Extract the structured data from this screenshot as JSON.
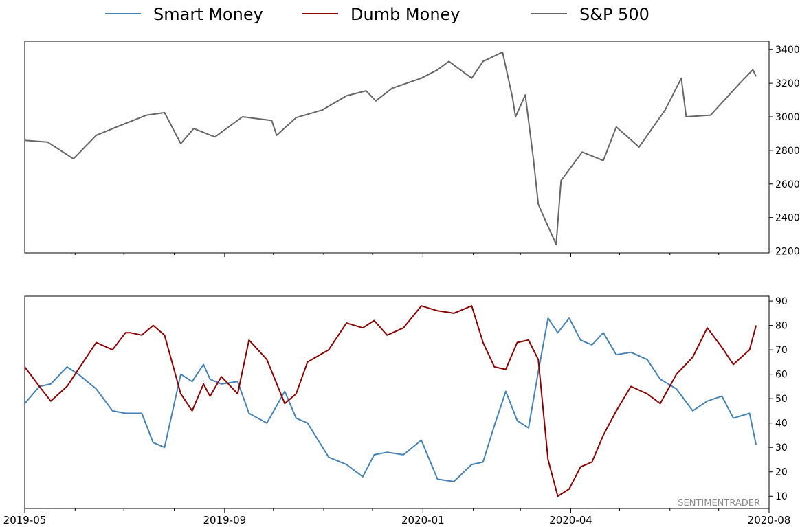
{
  "chart_data": [
    {
      "type": "line",
      "panel": "price",
      "series": [
        {
          "name": "S&P 500",
          "color": "#666666",
          "x": [
            "2019-05-01",
            "2019-05-15",
            "2019-05-31",
            "2019-06-14",
            "2019-06-28",
            "2019-07-15",
            "2019-07-26",
            "2019-08-05",
            "2019-08-13",
            "2019-08-26",
            "2019-09-12",
            "2019-09-30",
            "2019-10-03",
            "2019-10-15",
            "2019-10-31",
            "2019-11-15",
            "2019-11-27",
            "2019-12-03",
            "2019-12-13",
            "2019-12-31",
            "2020-01-10",
            "2020-01-17",
            "2020-01-31",
            "2020-02-07",
            "2020-02-19",
            "2020-02-25",
            "2020-02-27",
            "2020-03-04",
            "2020-03-09",
            "2020-03-12",
            "2020-03-16",
            "2020-03-20",
            "2020-03-23",
            "2020-03-26",
            "2020-04-08",
            "2020-04-21",
            "2020-04-29",
            "2020-05-13",
            "2020-05-29",
            "2020-06-08",
            "2020-06-11",
            "2020-06-26",
            "2020-07-14",
            "2020-07-22",
            "2020-07-24"
          ],
          "values": [
            2860,
            2850,
            2750,
            2890,
            2945,
            3010,
            3025,
            2840,
            2930,
            2880,
            3000,
            2978,
            2890,
            2995,
            3040,
            3125,
            3155,
            3095,
            3170,
            3230,
            3280,
            3330,
            3230,
            3330,
            3385,
            3120,
            3000,
            3130,
            2750,
            2480,
            2390,
            2305,
            2240,
            2620,
            2790,
            2740,
            2940,
            2820,
            3040,
            3230,
            3000,
            3010,
            3200,
            3280,
            3240
          ]
        }
      ],
      "yticks": [
        2200,
        2400,
        2600,
        2800,
        3000,
        3200,
        3400
      ],
      "ylim": [
        2190,
        3450
      ],
      "xlim": [
        "2019-05-01",
        "2020-08-01"
      ],
      "grid": false
    },
    {
      "type": "line",
      "panel": "confidence",
      "series": [
        {
          "name": "Smart Money",
          "color": "#4682b4",
          "x": [
            "2019-05-01",
            "2019-05-10",
            "2019-05-17",
            "2019-05-27",
            "2019-06-03",
            "2019-06-14",
            "2019-06-24",
            "2019-07-02",
            "2019-07-05",
            "2019-07-12",
            "2019-07-19",
            "2019-07-26",
            "2019-08-05",
            "2019-08-12",
            "2019-08-19",
            "2019-08-23",
            "2019-08-30",
            "2019-09-09",
            "2019-09-16",
            "2019-09-27",
            "2019-10-08",
            "2019-10-15",
            "2019-10-22",
            "2019-11-04",
            "2019-11-15",
            "2019-11-25",
            "2019-12-02",
            "2019-12-10",
            "2019-12-20",
            "2019-12-31",
            "2020-01-10",
            "2020-01-20",
            "2020-01-31",
            "2020-02-07",
            "2020-02-14",
            "2020-02-21",
            "2020-02-28",
            "2020-03-06",
            "2020-03-12",
            "2020-03-18",
            "2020-03-24",
            "2020-03-31",
            "2020-04-07",
            "2020-04-14",
            "2020-04-21",
            "2020-04-29",
            "2020-05-08",
            "2020-05-18",
            "2020-05-26",
            "2020-06-05",
            "2020-06-15",
            "2020-06-24",
            "2020-07-03",
            "2020-07-10",
            "2020-07-20",
            "2020-07-24"
          ],
          "values": [
            48,
            55,
            56,
            63,
            60,
            54,
            45,
            44,
            44,
            44,
            32,
            30,
            60,
            57,
            64,
            58,
            56,
            57,
            44,
            40,
            53,
            42,
            40,
            26,
            23,
            18,
            27,
            28,
            27,
            33,
            17,
            16,
            23,
            24,
            39,
            53,
            41,
            38,
            61,
            83,
            77,
            83,
            74,
            72,
            77,
            68,
            69,
            66,
            58,
            54,
            45,
            49,
            51,
            42,
            44,
            31
          ]
        },
        {
          "name": "Dumb Money",
          "color": "#8b0000",
          "x": [
            "2019-05-01",
            "2019-05-10",
            "2019-05-17",
            "2019-05-27",
            "2019-06-03",
            "2019-06-14",
            "2019-06-24",
            "2019-07-02",
            "2019-07-05",
            "2019-07-12",
            "2019-07-19",
            "2019-07-26",
            "2019-08-05",
            "2019-08-12",
            "2019-08-19",
            "2019-08-23",
            "2019-08-30",
            "2019-09-09",
            "2019-09-16",
            "2019-09-27",
            "2019-10-08",
            "2019-10-15",
            "2019-10-22",
            "2019-11-04",
            "2019-11-15",
            "2019-11-25",
            "2019-12-02",
            "2019-12-10",
            "2019-12-20",
            "2019-12-31",
            "2020-01-10",
            "2020-01-20",
            "2020-01-31",
            "2020-02-07",
            "2020-02-14",
            "2020-02-21",
            "2020-02-28",
            "2020-03-06",
            "2020-03-12",
            "2020-03-18",
            "2020-03-24",
            "2020-03-31",
            "2020-04-07",
            "2020-04-14",
            "2020-04-21",
            "2020-04-29",
            "2020-05-08",
            "2020-05-18",
            "2020-05-26",
            "2020-06-05",
            "2020-06-15",
            "2020-06-24",
            "2020-07-03",
            "2020-07-10",
            "2020-07-20",
            "2020-07-24"
          ],
          "values": [
            63,
            55,
            49,
            55,
            62,
            73,
            70,
            77,
            77,
            76,
            80,
            76,
            52,
            45,
            56,
            51,
            59,
            52,
            74,
            66,
            48,
            52,
            65,
            70,
            81,
            79,
            82,
            76,
            79,
            88,
            86,
            85,
            88,
            73,
            63,
            62,
            73,
            74,
            66,
            25,
            10,
            13,
            22,
            24,
            35,
            45,
            55,
            52,
            48,
            60,
            67,
            79,
            71,
            64,
            70,
            80
          ]
        }
      ],
      "yticks": [
        10,
        20,
        30,
        40,
        50,
        60,
        70,
        80,
        90
      ],
      "ylim": [
        5,
        92
      ],
      "xlim": [
        "2019-05-01",
        "2020-08-01"
      ],
      "xtick_labels": [
        "2019-05",
        "2019-09",
        "2020-01",
        "2020-04",
        "2020-08"
      ],
      "grid": false
    }
  ],
  "legend": {
    "placement": "top-center",
    "items": [
      {
        "label": "Smart Money",
        "color": "#4682b4"
      },
      {
        "label": "Dumb Money",
        "color": "#8b0000"
      },
      {
        "label": "S&P 500",
        "color": "#666666"
      }
    ]
  },
  "watermark": "SENTIMENTRADER"
}
